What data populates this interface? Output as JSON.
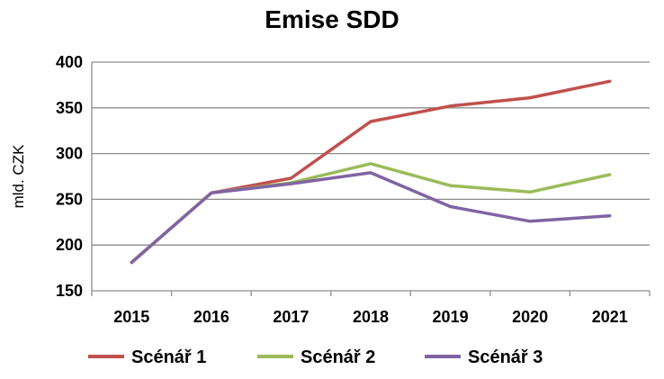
{
  "chart_data": {
    "type": "line",
    "title": "Emise SDD",
    "xlabel": "",
    "ylabel": "mld. CZK",
    "categories": [
      "2015",
      "2016",
      "2017",
      "2018",
      "2019",
      "2020",
      "2021"
    ],
    "ylim": [
      150,
      400
    ],
    "yticks": [
      150,
      200,
      250,
      300,
      350,
      400
    ],
    "grid": true,
    "legend": "bottom",
    "series": [
      {
        "name": "Scénář 1",
        "color": "#c0504d",
        "values": [
          181,
          257,
          273,
          335,
          352,
          361,
          379
        ]
      },
      {
        "name": "Scénář 2",
        "color": "#9bbb59",
        "values": [
          181,
          257,
          268,
          289,
          265,
          258,
          277
        ]
      },
      {
        "name": "Scénář 3",
        "color": "#8064a2",
        "values": [
          181,
          257,
          267,
          279,
          242,
          226,
          232
        ]
      }
    ]
  }
}
